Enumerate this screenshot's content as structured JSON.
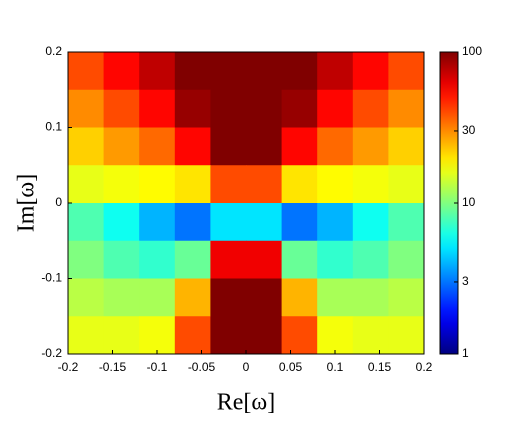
{
  "chart_data": {
    "type": "heatmap",
    "xlabel": "Re[ω]",
    "ylabel": "Im[ω]",
    "x": [
      -0.18,
      -0.14,
      -0.1,
      -0.06,
      -0.02,
      0.02,
      0.06,
      0.1,
      0.14,
      0.18
    ],
    "y": [
      0.175,
      0.125,
      0.075,
      0.025,
      -0.025,
      -0.075,
      -0.125,
      -0.175
    ],
    "values": [
      [
        40,
        55,
        75,
        100,
        100,
        100,
        100,
        75,
        55,
        40
      ],
      [
        30,
        40,
        55,
        90,
        100,
        100,
        90,
        55,
        40,
        30
      ],
      [
        22,
        28,
        35,
        55,
        100,
        100,
        55,
        35,
        28,
        22
      ],
      [
        16,
        17,
        18,
        20,
        40,
        40,
        20,
        18,
        17,
        16
      ],
      [
        8,
        6,
        4,
        3,
        5,
        5,
        3,
        4,
        6,
        8
      ],
      [
        10,
        8,
        7,
        9,
        60,
        60,
        9,
        7,
        8,
        10
      ],
      [
        13,
        12,
        12,
        25,
        100,
        100,
        25,
        12,
        12,
        13
      ],
      [
        16,
        16,
        17,
        40,
        100,
        100,
        40,
        17,
        16,
        16
      ]
    ],
    "xlim": [
      -0.2,
      0.2
    ],
    "ylim": [
      -0.2,
      0.2
    ],
    "xticks": [
      -0.2,
      -0.15,
      -0.1,
      -0.05,
      0,
      0.05,
      0.1,
      0.15,
      0.2
    ],
    "yticks": [
      -0.2,
      -0.1,
      0,
      0.1,
      0.2
    ],
    "colormap": "jet",
    "colorbar": {
      "lim": [
        1,
        100
      ],
      "ticks": [
        1,
        3,
        10,
        30,
        100
      ],
      "log": true
    }
  }
}
